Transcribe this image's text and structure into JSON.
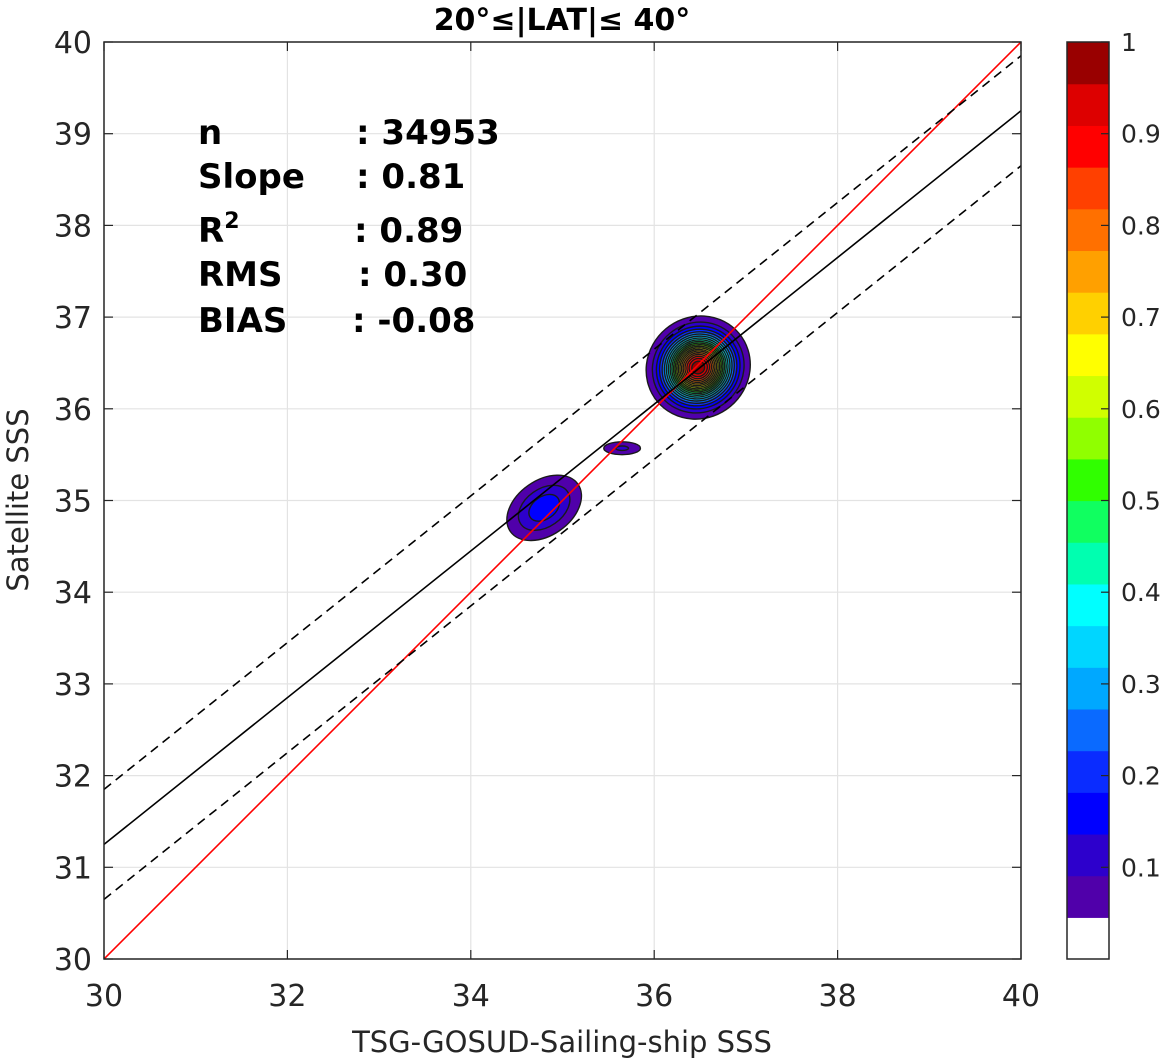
{
  "chart_data": {
    "type": "contour",
    "title": "20°≤|LAT|≤ 40°",
    "xlabel": "TSG-GOSUD-Sailing-ship SSS",
    "ylabel": "Satellite SSS",
    "xlim": [
      30,
      40
    ],
    "ylim": [
      30,
      40
    ],
    "xticks": [
      "30",
      "32",
      "34",
      "36",
      "38",
      "40"
    ],
    "yticks": [
      "30",
      "31",
      "32",
      "33",
      "34",
      "35",
      "36",
      "37",
      "38",
      "39",
      "40"
    ],
    "grid": true,
    "stats": {
      "n_label": "n",
      "n_value": ": 34953",
      "slope_label": "Slope",
      "slope_value": ": 0.81",
      "r2_label": "R",
      "r2_sup": "2",
      "r2_value": ": 0.89",
      "rms_label": "RMS",
      "rms_value": ": 0.30",
      "bias_label": "BIAS",
      "bias_value": ": -0.08"
    },
    "lines": [
      {
        "role": "one-to-one",
        "color": "#ff0000",
        "style": "solid",
        "slope": 1.0,
        "intercept": 0.0
      },
      {
        "role": "regression fit",
        "color": "#000000",
        "style": "solid",
        "slope": 0.8,
        "intercept": 7.25
      },
      {
        "role": "upper bound",
        "color": "#000000",
        "style": "dashed",
        "slope": 0.8,
        "intercept": 7.85
      },
      {
        "role": "lower bound",
        "color": "#000000",
        "style": "dashed",
        "slope": 0.8,
        "intercept": 6.65
      }
    ],
    "density_peaks": [
      {
        "x": 36.48,
        "y": 36.45,
        "peak": 1.0,
        "rx": 0.58,
        "ry": 0.55,
        "angle_deg": 40
      },
      {
        "x": 34.8,
        "y": 34.92,
        "peak": 0.17,
        "rx": 0.45,
        "ry": 0.3,
        "angle_deg": 35
      },
      {
        "x": 35.65,
        "y": 35.57,
        "peak": 0.1,
        "rx": 0.2,
        "ry": 0.07,
        "angle_deg": 0
      }
    ],
    "colorbar": {
      "min": 0,
      "max": 1,
      "ticks": [
        "0.1",
        "0.2",
        "0.3",
        "0.4",
        "0.5",
        "0.6",
        "0.7",
        "0.8",
        "0.9",
        "1"
      ],
      "colors": [
        "#ffffff",
        "#5000aa",
        "#2d00cc",
        "#0000ff",
        "#0a2cff",
        "#0a6aff",
        "#00a8ff",
        "#00d6ff",
        "#00ffff",
        "#00ffb0",
        "#10ff60",
        "#30ff00",
        "#90ff00",
        "#d0ff00",
        "#ffff00",
        "#ffd000",
        "#ffa000",
        "#ff7000",
        "#ff4000",
        "#ff0000",
        "#dd0000",
        "#990000"
      ]
    }
  }
}
